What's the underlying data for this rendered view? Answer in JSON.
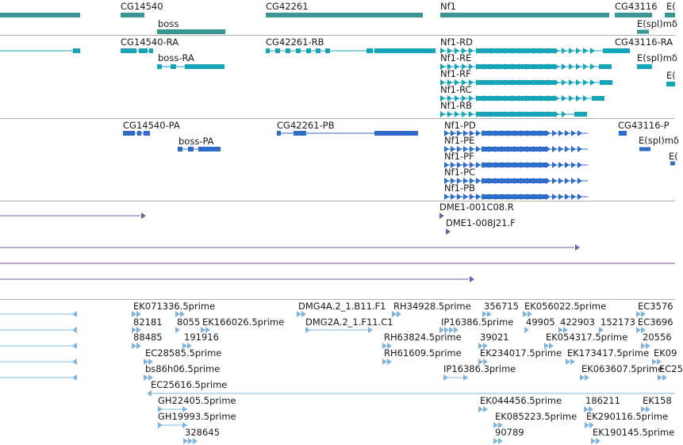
{
  "colors": {
    "gene": "#3a9693",
    "transcript": "#18a4b8",
    "protein": "#2f6bc8",
    "clone": "#7a5aa8",
    "est": "#80b4dc",
    "separator": "#b4b4b4"
  },
  "tracks": {
    "genes": {
      "labels": [
        "CG14540",
        "boss",
        "CG42261",
        "Nf1",
        "CG43116",
        "E(",
        "E(spl)mδ"
      ]
    },
    "transcripts": {
      "labels": [
        "CG14540-RA",
        "boss-RA",
        "CG42261-RB",
        "Nf1-RD",
        "Nf1-RE",
        "Nf1-RF",
        "Nf1-RC",
        "Nf1-RB",
        "CG43116-RA",
        "E(spl)mδ",
        "E("
      ]
    },
    "proteins": {
      "labels": [
        "CG14540-PA",
        "boss-PA",
        "CG42261-PB",
        "Nf1-PD",
        "Nf1-PE",
        "Nf1-PF",
        "Nf1-PC",
        "Nf1-PB",
        "CG43116-P",
        "E(spl)mδ",
        "E("
      ]
    },
    "clones": {
      "labels": [
        "DME1-001C08.R",
        "DME1-008J21.F"
      ]
    },
    "ests": {
      "labels": [
        "EK071336.5prime",
        "DMG4A.2_1.B11.F1",
        "RH34928.5prime",
        "356715",
        "EK056022.5prime",
        "EC3576",
        "82181",
        "8055",
        "EK166026.5prime",
        "DMG2A.2_1.F11.C1",
        "IP16386.5prime",
        "49905",
        "422903",
        "152173",
        "EC3696",
        "88485",
        "191916",
        "RH63824.5prime",
        "39021",
        "EK054317.5prime",
        "20556",
        "EC28585.5prime",
        "RH61609.5prime",
        "EK234017.5prime",
        "EK173417.5prime",
        "EK09",
        "bs86h06.5prime",
        "IP16386.3prime",
        "EK063607.5prime",
        "EC25",
        "EC25616.5prime",
        "GH22405.5prime",
        "EK044456.5prime",
        "186211",
        "EK158",
        "GH19993.5prime",
        "EK085223.5prime",
        "EK290116.5prime",
        "328645",
        "90789",
        "EK190145.5prime"
      ]
    }
  }
}
